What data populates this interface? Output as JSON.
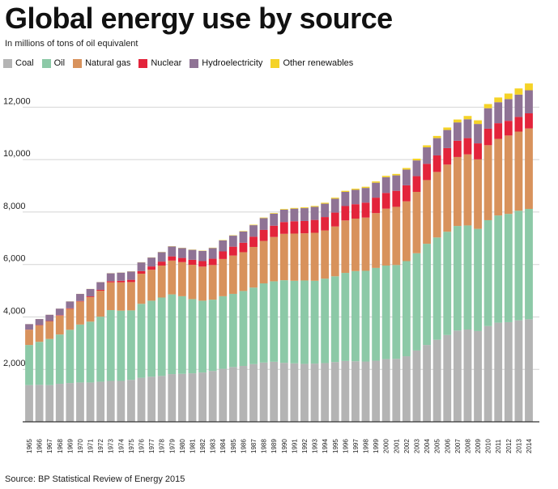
{
  "title": "Global energy use by source",
  "subtitle": "In millions of tons of oil equivalent",
  "source": "Source: BP Statistical Review of Energy 2015",
  "legend": [
    {
      "name": "Coal",
      "color": "#b4b4b4"
    },
    {
      "name": "Oil",
      "color": "#8cc9a7"
    },
    {
      "name": "Natural gas",
      "color": "#d8925c"
    },
    {
      "name": "Nuclear",
      "color": "#e3243b"
    },
    {
      "name": "Hydroelectricity",
      "color": "#8f7395"
    },
    {
      "name": "Other renewables",
      "color": "#f5d327"
    }
  ],
  "chart_data": {
    "type": "bar",
    "stacked": true,
    "title": "Global energy use by source",
    "ylabel": "",
    "ylim": [
      0,
      13000
    ],
    "yticks": [
      2000,
      4000,
      6000,
      8000,
      10000,
      12000
    ],
    "grid": true,
    "legend_position": "top-left",
    "categories": [
      "1965",
      "1966",
      "1967",
      "1968",
      "1969",
      "1970",
      "1971",
      "1972",
      "1973",
      "1974",
      "1975",
      "1976",
      "1977",
      "1978",
      "1979",
      "1980",
      "1981",
      "1982",
      "1983",
      "1984",
      "1985",
      "1986",
      "1987",
      "1988",
      "1989",
      "1990",
      "1991",
      "1992",
      "1993",
      "1994",
      "1995",
      "1996",
      "1997",
      "1998",
      "1999",
      "2000",
      "2001",
      "2002",
      "2003",
      "2004",
      "2005",
      "2006",
      "2007",
      "2008",
      "2009",
      "2010",
      "2011",
      "2012",
      "2013",
      "2014"
    ],
    "series": [
      {
        "name": "Coal",
        "color": "#b4b4b4",
        "values": [
          1400,
          1410,
          1400,
          1450,
          1480,
          1500,
          1500,
          1530,
          1560,
          1560,
          1600,
          1680,
          1720,
          1750,
          1820,
          1830,
          1850,
          1880,
          1940,
          2020,
          2090,
          2130,
          2200,
          2260,
          2290,
          2250,
          2230,
          2210,
          2220,
          2240,
          2280,
          2320,
          2310,
          2300,
          2330,
          2390,
          2400,
          2500,
          2720,
          2930,
          3130,
          3310,
          3480,
          3520,
          3460,
          3650,
          3780,
          3800,
          3870,
          3910
        ]
      },
      {
        "name": "Oil",
        "color": "#8cc9a7",
        "values": [
          1530,
          1640,
          1760,
          1880,
          2030,
          2210,
          2320,
          2480,
          2700,
          2680,
          2650,
          2820,
          2900,
          2990,
          3040,
          2960,
          2830,
          2740,
          2720,
          2770,
          2790,
          2860,
          2920,
          3020,
          3070,
          3150,
          3150,
          3180,
          3160,
          3220,
          3270,
          3360,
          3440,
          3460,
          3540,
          3570,
          3580,
          3630,
          3710,
          3860,
          3900,
          3940,
          3990,
          3970,
          3900,
          4040,
          4090,
          4130,
          4180,
          4210
        ]
      },
      {
        "name": "Natural gas",
        "color": "#d8925c",
        "values": [
          580,
          630,
          670,
          720,
          800,
          880,
          940,
          990,
          1060,
          1080,
          1080,
          1150,
          1180,
          1220,
          1290,
          1300,
          1310,
          1300,
          1320,
          1420,
          1460,
          1480,
          1550,
          1620,
          1690,
          1770,
          1800,
          1800,
          1830,
          1840,
          1900,
          2000,
          2000,
          2030,
          2090,
          2170,
          2220,
          2280,
          2340,
          2430,
          2500,
          2560,
          2630,
          2710,
          2650,
          2860,
          2920,
          2990,
          3020,
          3070
        ]
      },
      {
        "name": "Nuclear",
        "color": "#e3243b",
        "values": [
          6,
          10,
          13,
          17,
          20,
          18,
          26,
          36,
          45,
          60,
          85,
          100,
          125,
          150,
          160,
          160,
          190,
          210,
          240,
          290,
          340,
          360,
          390,
          420,
          430,
          450,
          470,
          470,
          490,
          510,
          530,
          550,
          550,
          570,
          590,
          600,
          610,
          610,
          600,
          620,
          630,
          630,
          620,
          620,
          610,
          630,
          600,
          560,
          560,
          575
        ]
      },
      {
        "name": "Hydroelectricity",
        "color": "#8f7395",
        "values": [
          210,
          230,
          240,
          250,
          260,
          270,
          280,
          290,
          300,
          310,
          320,
          330,
          340,
          360,
          380,
          380,
          380,
          390,
          410,
          420,
          420,
          430,
          440,
          450,
          460,
          470,
          480,
          490,
          500,
          510,
          530,
          540,
          550,
          560,
          570,
          600,
          590,
          600,
          600,
          630,
          660,
          690,
          700,
          720,
          740,
          780,
          800,
          830,
          850,
          880
        ]
      },
      {
        "name": "Other renewables",
        "color": "#f5d327",
        "values": [
          2,
          2,
          2,
          2,
          3,
          3,
          3,
          3,
          4,
          4,
          5,
          6,
          6,
          7,
          8,
          8,
          9,
          10,
          11,
          13,
          14,
          16,
          18,
          20,
          22,
          24,
          27,
          29,
          32,
          35,
          38,
          40,
          42,
          45,
          48,
          51,
          54,
          60,
          67,
          75,
          84,
          95,
          110,
          125,
          140,
          160,
          180,
          210,
          235,
          260
        ]
      }
    ]
  }
}
